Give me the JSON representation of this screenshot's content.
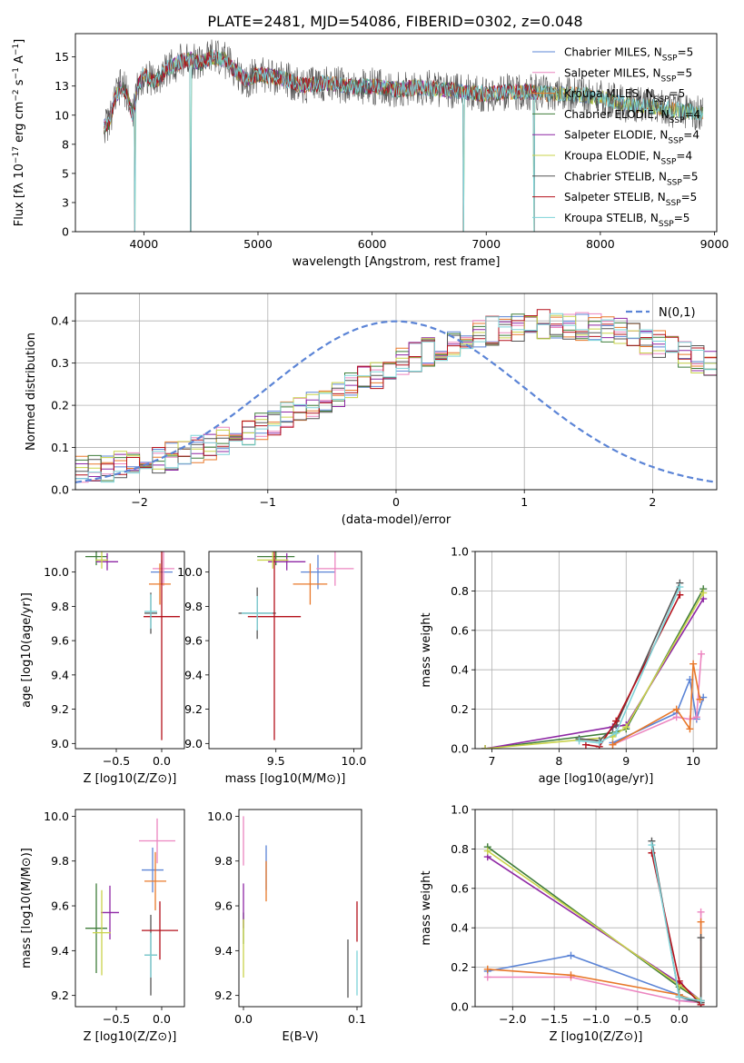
{
  "figure": {
    "title": "PLATE=2481, MJD=54086, FIBERID=0302, z=0.048"
  },
  "colors": {
    "chabrier_miles": "#5b84d6",
    "salpeter_miles": "#ec85c0",
    "kroupa_miles": "#e8782a",
    "chabrier_elodie": "#3f7d3a",
    "salpeter_elodie": "#8e27a4",
    "kroupa_elodie": "#c9d34a",
    "chabrier_stelib": "#555555",
    "salpeter_stelib": "#b4111b",
    "kroupa_stelib": "#7dd3d8",
    "grid": "#b0b0b0",
    "normal_curve": "#5b84d6"
  },
  "chart_data": [
    {
      "id": "spectrum",
      "type": "line",
      "xlabel": "wavelength [Angstrom, rest frame]",
      "ylabel": "Flux [f_λ 10^-17 erg cm^-2 s^-1 A^-1]",
      "xlim": [
        3400,
        9020
      ],
      "ylim": [
        0,
        17
      ],
      "xticks": [
        4000,
        5000,
        6000,
        7000,
        8000,
        9000
      ],
      "yticks": [
        0.0,
        2.5,
        5.0,
        7.5,
        10.0,
        12.5,
        15.0
      ],
      "grid": false,
      "legend_position": "top-right",
      "legend": [
        {
          "label": "Chabrier MILES, N_SSP=5",
          "color_key": "chabrier_miles"
        },
        {
          "label": "Salpeter MILES, N_SSP=5",
          "color_key": "salpeter_miles"
        },
        {
          "label": "Kroupa MILES, N_SSP=5",
          "color_key": "kroupa_miles"
        },
        {
          "label": "Chabrier ELODIE, N_SSP=4",
          "color_key": "chabrier_elodie"
        },
        {
          "label": "Salpeter ELODIE, N_SSP=4",
          "color_key": "salpeter_elodie"
        },
        {
          "label": "Kroupa ELODIE, N_SSP=4",
          "color_key": "kroupa_elodie"
        },
        {
          "label": "Chabrier STELIB, N_SSP=5",
          "color_key": "chabrier_stelib"
        },
        {
          "label": "Salpeter STELIB, N_SSP=5",
          "color_key": "salpeter_stelib"
        },
        {
          "label": "Kroupa STELIB, N_SSP=5",
          "color_key": "kroupa_stelib"
        }
      ],
      "observed_envelope": {
        "x": [
          3650,
          3700,
          3750,
          3800,
          3850,
          3900,
          3950,
          4000,
          4100,
          4200,
          4300,
          4400,
          4500,
          4600,
          4700,
          4800,
          4900,
          5000,
          5200,
          5400,
          5600,
          5800,
          6000,
          6200,
          6400,
          6600,
          6800,
          7000,
          7200,
          7400,
          7600,
          7800,
          8000,
          8200,
          8400,
          8600,
          8800,
          8900
        ],
        "y": [
          9.0,
          9.5,
          11.5,
          12.5,
          12.0,
          10.0,
          12.5,
          13.5,
          12.8,
          14.0,
          14.5,
          14.8,
          14.5,
          15.0,
          14.8,
          13.8,
          13.0,
          13.5,
          13.2,
          12.5,
          12.8,
          12.4,
          12.5,
          12.2,
          12.4,
          12.2,
          12.0,
          11.8,
          12.0,
          12.0,
          11.8,
          11.8,
          11.5,
          11.0,
          10.8,
          10.5,
          10.3,
          10.2
        ]
      },
      "absorption_features": [
        {
          "x": 3920,
          "y": 0.0
        },
        {
          "x": 4410,
          "y": 0.0
        },
        {
          "x": 6800,
          "y": 0.0
        },
        {
          "x": 7420,
          "y": 0.0
        }
      ]
    },
    {
      "id": "residuals",
      "type": "line",
      "xlabel": "(data-model)/error",
      "ylabel": "Normed distribution",
      "xlim": [
        -2.5,
        2.5
      ],
      "ylim": [
        0,
        0.465
      ],
      "xticks": [
        -2,
        -1,
        0,
        1,
        2
      ],
      "yticks": [
        0.0,
        0.1,
        0.2,
        0.3,
        0.4
      ],
      "grid": true,
      "legend_position": "top-right",
      "legend": [
        {
          "label": "N(0,1)",
          "style": "dashed"
        }
      ],
      "normal_curve": {
        "mean": 0,
        "sigma": 1
      },
      "bin_width": 0.1,
      "bin_start": -2.5,
      "series_base": [
        0.045,
        0.046,
        0.052,
        0.057,
        0.062,
        0.068,
        0.074,
        0.081,
        0.089,
        0.097,
        0.106,
        0.116,
        0.126,
        0.137,
        0.149,
        0.161,
        0.174,
        0.187,
        0.201,
        0.215,
        0.229,
        0.244,
        0.258,
        0.273,
        0.287,
        0.301,
        0.314,
        0.327,
        0.339,
        0.35,
        0.36,
        0.368,
        0.376,
        0.382,
        0.387,
        0.39,
        0.392,
        0.392,
        0.391,
        0.388,
        0.384,
        0.378,
        0.371,
        0.363,
        0.354,
        0.343,
        0.332,
        0.32,
        0.307,
        0.294
      ]
    },
    {
      "id": "age_vs_metallicity",
      "type": "scatter",
      "xlabel": "Z [log10(Z/Z⊙)]",
      "ylabel": "age  [log10(age/yr)]",
      "xlim": [
        -0.95,
        0.25
      ],
      "ylim": [
        8.97,
        10.12
      ],
      "xticks": [
        -0.5,
        0.0
      ],
      "yticks": [
        9.0,
        9.2,
        9.4,
        9.6,
        9.8,
        10.0
      ],
      "grid": false,
      "points": [
        {
          "series": "chabrier_miles",
          "x": 0.0,
          "y": 10.0,
          "xerr": 0.12,
          "yerr": 0.07
        },
        {
          "series": "salpeter_miles",
          "x": 0.02,
          "y": 10.02,
          "xerr": 0.12,
          "yerr": 0.1
        },
        {
          "series": "kroupa_miles",
          "x": -0.02,
          "y": 9.93,
          "xerr": 0.12,
          "yerr": 0.12
        },
        {
          "series": "chabrier_elodie",
          "x": -0.72,
          "y": 10.09,
          "xerr": 0.12,
          "yerr": 0.05
        },
        {
          "series": "salpeter_elodie",
          "x": -0.6,
          "y": 10.06,
          "xerr": 0.12,
          "yerr": 0.05
        },
        {
          "series": "kroupa_elodie",
          "x": -0.66,
          "y": 10.07,
          "xerr": 0.07,
          "yerr": 0.05
        },
        {
          "series": "chabrier_stelib",
          "x": -0.12,
          "y": 9.76,
          "xerr": 0.07,
          "yerr": 0.12
        },
        {
          "series": "salpeter_stelib",
          "x": 0.0,
          "y": 9.74,
          "xerr": 0.2,
          "yerr": 0.72
        },
        {
          "series": "kroupa_stelib",
          "x": -0.12,
          "y": 9.77,
          "xerr": 0.07,
          "yerr": 0.1
        }
      ]
    },
    {
      "id": "age_vs_mass",
      "type": "scatter",
      "xlabel": "mass [log10(M/M⊙)]",
      "ylabel": "",
      "xlim": [
        9.07,
        10.05
      ],
      "ylim": [
        8.97,
        10.12
      ],
      "xticks": [
        9.5,
        10.0
      ],
      "yticks": [
        9.0,
        9.2,
        9.4,
        9.6,
        9.8,
        10.0
      ],
      "grid": false,
      "points": [
        {
          "series": "chabrier_miles",
          "x": 9.77,
          "y": 10.0,
          "xerr": 0.11,
          "yerr": 0.1
        },
        {
          "series": "salpeter_miles",
          "x": 9.88,
          "y": 10.02,
          "xerr": 0.12,
          "yerr": 0.1
        },
        {
          "series": "kroupa_miles",
          "x": 9.72,
          "y": 9.93,
          "xerr": 0.11,
          "yerr": 0.12
        },
        {
          "series": "chabrier_elodie",
          "x": 9.5,
          "y": 10.09,
          "xerr": 0.12,
          "yerr": 0.05
        },
        {
          "series": "salpeter_elodie",
          "x": 9.57,
          "y": 10.06,
          "xerr": 0.12,
          "yerr": 0.05
        },
        {
          "series": "kroupa_elodie",
          "x": 9.48,
          "y": 10.07,
          "xerr": 0.1,
          "yerr": 0.05
        },
        {
          "series": "chabrier_stelib",
          "x": 9.38,
          "y": 9.76,
          "xerr": 0.12,
          "yerr": 0.15
        },
        {
          "series": "salpeter_stelib",
          "x": 9.49,
          "y": 9.74,
          "xerr": 0.17,
          "yerr": 0.72
        },
        {
          "series": "kroupa_stelib",
          "x": 9.38,
          "y": 9.76,
          "xerr": 0.1,
          "yerr": 0.1
        }
      ]
    },
    {
      "id": "mass_weight_vs_age",
      "type": "line",
      "xlabel": "age  [log10(age/yr)]",
      "ylabel": "mass weight",
      "xlim": [
        6.75,
        10.35
      ],
      "ylim": [
        0,
        1.0
      ],
      "xticks": [
        7,
        8,
        9,
        10
      ],
      "yticks": [
        0.0,
        0.2,
        0.4,
        0.6,
        0.8,
        1.0
      ],
      "grid": true,
      "series": [
        {
          "name": "Chabrier MILES, N_SSP=5",
          "color_key": "chabrier_miles",
          "x": [
            8.8,
            9.75,
            9.95,
            10.05,
            10.15
          ],
          "y": [
            0.03,
            0.18,
            0.35,
            0.15,
            0.26
          ]
        },
        {
          "name": "Salpeter MILES, N_SSP=5",
          "color_key": "salpeter_miles",
          "x": [
            8.8,
            9.75,
            9.95,
            10.05,
            10.12
          ],
          "y": [
            0.02,
            0.16,
            0.15,
            0.16,
            0.48
          ]
        },
        {
          "name": "Kroupa MILES, N_SSP=5",
          "color_key": "kroupa_miles",
          "x": [
            8.8,
            9.75,
            9.95,
            10.0,
            10.1
          ],
          "y": [
            0.02,
            0.2,
            0.1,
            0.43,
            0.25
          ]
        },
        {
          "name": "Chabrier ELODIE, N_SSP=4",
          "color_key": "chabrier_elodie",
          "x": [
            6.9,
            8.8,
            9.0,
            10.15
          ],
          "y": [
            0.0,
            0.08,
            0.1,
            0.81
          ]
        },
        {
          "name": "Salpeter ELODIE, N_SSP=4",
          "color_key": "salpeter_elodie",
          "x": [
            6.9,
            8.8,
            9.0,
            10.15
          ],
          "y": [
            0.0,
            0.11,
            0.12,
            0.76
          ]
        },
        {
          "name": "Kroupa ELODIE, N_SSP=4",
          "color_key": "kroupa_elodie",
          "x": [
            6.9,
            8.8,
            9.0,
            10.15
          ],
          "y": [
            0.0,
            0.06,
            0.11,
            0.79
          ]
        },
        {
          "name": "Chabrier STELIB, N_SSP=5",
          "color_key": "chabrier_stelib",
          "x": [
            8.3,
            8.6,
            8.85,
            9.8
          ],
          "y": [
            0.05,
            0.04,
            0.12,
            0.84
          ]
        },
        {
          "name": "Salpeter STELIB, N_SSP=5",
          "color_key": "salpeter_stelib",
          "x": [
            8.4,
            8.6,
            8.85,
            9.8
          ],
          "y": [
            0.02,
            0.01,
            0.14,
            0.78
          ]
        },
        {
          "name": "Kroupa STELIB, N_SSP=5",
          "color_key": "kroupa_stelib",
          "x": [
            8.3,
            8.6,
            8.85,
            9.8
          ],
          "y": [
            0.04,
            0.03,
            0.08,
            0.82
          ]
        }
      ]
    },
    {
      "id": "mass_vs_metallicity",
      "type": "scatter",
      "xlabel": "Z [log10(Z/Z⊙)]",
      "ylabel": "mass [log10(M/M⊙)]",
      "xlim": [
        -0.95,
        0.25
      ],
      "ylim": [
        9.15,
        10.03
      ],
      "xticks": [
        -0.5,
        0.0
      ],
      "yticks": [
        9.2,
        9.4,
        9.6,
        9.8,
        10.0
      ],
      "grid": false,
      "points": [
        {
          "series": "chabrier_miles",
          "x": -0.1,
          "y": 9.76,
          "xerr": 0.12,
          "yerr": 0.1
        },
        {
          "series": "salpeter_miles",
          "x": -0.05,
          "y": 9.89,
          "xerr": 0.2,
          "yerr": 0.1
        },
        {
          "series": "kroupa_miles",
          "x": -0.07,
          "y": 9.71,
          "xerr": 0.12,
          "yerr": 0.13
        },
        {
          "series": "chabrier_elodie",
          "x": -0.72,
          "y": 9.5,
          "xerr": 0.12,
          "yerr": 0.2
        },
        {
          "series": "salpeter_elodie",
          "x": -0.57,
          "y": 9.57,
          "xerr": 0.1,
          "yerr": 0.12
        },
        {
          "series": "kroupa_elodie",
          "x": -0.66,
          "y": 9.48,
          "xerr": 0.1,
          "yerr": 0.19
        },
        {
          "series": "chabrier_stelib",
          "x": -0.12,
          "y": 9.38,
          "xerr": 0.07,
          "yerr": 0.18
        },
        {
          "series": "salpeter_stelib",
          "x": -0.02,
          "y": 9.49,
          "xerr": 0.2,
          "yerr": 0.13
        },
        {
          "series": "kroupa_stelib",
          "x": -0.12,
          "y": 9.38,
          "xerr": 0.07,
          "yerr": 0.1
        }
      ]
    },
    {
      "id": "mass_vs_ebv",
      "type": "scatter",
      "xlabel": "E(B-V)",
      "ylabel": "",
      "xlim": [
        -0.004,
        0.104
      ],
      "ylim": [
        9.15,
        10.03
      ],
      "xticks": [
        0.0,
        0.1
      ],
      "yticks": [
        9.2,
        9.4,
        9.6,
        9.8,
        10.0
      ],
      "grid": false,
      "points": [
        {
          "series": "chabrier_miles",
          "x": 0.02,
          "y": 9.77,
          "xerr": 0,
          "yerr": 0.1
        },
        {
          "series": "salpeter_miles",
          "x": 0.0,
          "y": 9.89,
          "xerr": 0,
          "yerr": 0.11
        },
        {
          "series": "kroupa_miles",
          "x": 0.02,
          "y": 9.71,
          "xerr": 0,
          "yerr": 0.09
        },
        {
          "series": "chabrier_elodie",
          "x": 0.0,
          "y": 9.5,
          "xerr": 0,
          "yerr": 0.07
        },
        {
          "series": "salpeter_elodie",
          "x": 0.0,
          "y": 9.6,
          "xerr": 0,
          "yerr": 0.1
        },
        {
          "series": "kroupa_elodie",
          "x": 0.0,
          "y": 9.41,
          "xerr": 0,
          "yerr": 0.13
        },
        {
          "series": "chabrier_stelib",
          "x": 0.092,
          "y": 9.32,
          "xerr": 0,
          "yerr": 0.13
        },
        {
          "series": "salpeter_stelib",
          "x": 0.1,
          "y": 9.53,
          "xerr": 0,
          "yerr": 0.09
        },
        {
          "series": "kroupa_stelib",
          "x": 0.1,
          "y": 9.3,
          "xerr": 0,
          "yerr": 0.1
        }
      ]
    },
    {
      "id": "mass_weight_vs_metallicity",
      "type": "line",
      "xlabel": "Z [log10(Z/Z⊙)]",
      "ylabel": "mass weight",
      "xlim": [
        -2.45,
        0.45
      ],
      "ylim": [
        0,
        1.0
      ],
      "xticks": [
        -2.0,
        -1.5,
        -1.0,
        -0.5,
        0.0
      ],
      "yticks": [
        0.0,
        0.2,
        0.4,
        0.6,
        0.8,
        1.0
      ],
      "grid": true,
      "series": [
        {
          "name": "Chabrier MILES, N_SSP=5",
          "color_key": "chabrier_miles",
          "x": [
            -2.3,
            -1.3,
            0.0,
            0.0,
            0.26
          ],
          "y": [
            0.18,
            0.26,
            0.06,
            0.03,
            0.03
          ]
        },
        {
          "name": "Salpeter MILES, N_SSP=5",
          "color_key": "salpeter_miles",
          "x": [
            -2.3,
            -1.3,
            0.0,
            0.26,
            0.26
          ],
          "y": [
            0.15,
            0.15,
            0.03,
            0.02,
            0.48
          ]
        },
        {
          "name": "Kroupa MILES, N_SSP=5",
          "color_key": "kroupa_miles",
          "x": [
            -2.3,
            -1.3,
            0.0,
            0.26,
            0.26
          ],
          "y": [
            0.19,
            0.16,
            0.06,
            0.02,
            0.43
          ]
        },
        {
          "name": "Chabrier ELODIE, N_SSP=4",
          "color_key": "chabrier_elodie",
          "x": [
            -2.3,
            0.0,
            0.26
          ],
          "y": [
            0.81,
            0.1,
            0.03
          ]
        },
        {
          "name": "Salpeter ELODIE, N_SSP=4",
          "color_key": "salpeter_elodie",
          "x": [
            -2.3,
            0.0,
            0.26
          ],
          "y": [
            0.76,
            0.12,
            0.03
          ]
        },
        {
          "name": "Kroupa ELODIE, N_SSP=4",
          "color_key": "kroupa_elodie",
          "x": [
            -2.3,
            0.0,
            0.26
          ],
          "y": [
            0.79,
            0.11,
            0.03
          ]
        },
        {
          "name": "Chabrier STELIB, N_SSP=5",
          "color_key": "chabrier_stelib",
          "x": [
            -0.33,
            0.0,
            0.26,
            0.26
          ],
          "y": [
            0.84,
            0.05,
            0.02,
            0.35
          ]
        },
        {
          "name": "Salpeter STELIB, N_SSP=5",
          "color_key": "salpeter_stelib",
          "x": [
            -0.33,
            0.0,
            0.26
          ],
          "y": [
            0.78,
            0.13,
            0.01
          ]
        },
        {
          "name": "Kroupa STELIB, N_SSP=5",
          "color_key": "kroupa_stelib",
          "x": [
            -0.33,
            0.0,
            0.26
          ],
          "y": [
            0.82,
            0.05,
            0.03
          ]
        }
      ]
    }
  ]
}
